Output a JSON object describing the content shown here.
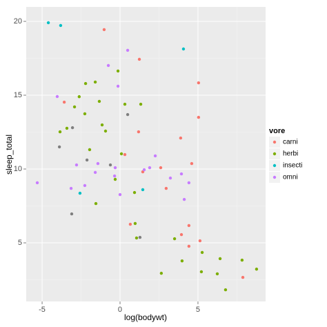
{
  "chart_data": {
    "type": "scatter",
    "x_label": "log(bodywt)",
    "y_label": "sleep_total",
    "legend_title": "vore",
    "xlim": [
      -6.02,
      9.34
    ],
    "ylim": [
      1.03,
      20.98
    ],
    "xticks": [
      -5,
      0,
      5
    ],
    "yticks": [
      5,
      10,
      15,
      20
    ],
    "grid": true,
    "legend": "right",
    "series": [
      {
        "name": "carni",
        "color": "#F8766D",
        "x": [
          -1.02,
          1.24,
          -3.58,
          5.04,
          5.04,
          1.19,
          3.89,
          0.31,
          2.61,
          4.6,
          1.46,
          2.96,
          0.66,
          3.94,
          4.42,
          5.13,
          4.42,
          7.88
        ],
        "values": [
          19.44,
          17.43,
          14.53,
          15.84,
          13.5,
          12.52,
          12.1,
          10.98,
          10.09,
          10.37,
          9.81,
          8.69,
          6.26,
          5.56,
          6.17,
          5.14,
          4.77,
          2.66
        ]
      },
      {
        "name": "herbi",
        "color": "#7CAE00",
        "x": [
          -0.13,
          -1.59,
          -2.21,
          -2.92,
          -1.33,
          0.31,
          1.33,
          -3.41,
          -1.15,
          -0.93,
          -3.85,
          -2.26,
          -2.62,
          -1.95,
          0.09,
          -0.31,
          0.93,
          -1.55,
          0.97,
          1.06,
          3.5,
          3.98,
          5.27,
          6.42,
          2.65,
          5.22,
          6.24,
          6.77,
          7.83,
          8.76
        ],
        "values": [
          16.64,
          15.89,
          15.79,
          14.21,
          14.58,
          14.39,
          14.39,
          12.76,
          12.99,
          12.57,
          12.52,
          13.74,
          14.9,
          11.31,
          11.03,
          9.3,
          8.41,
          7.66,
          6.31,
          5.33,
          5.28,
          3.78,
          4.35,
          3.93,
          2.94,
          3.04,
          2.9,
          1.82,
          3.83,
          3.22
        ]
      },
      {
        "name": "insecti",
        "color": "#00BFC4",
        "x": [
          -4.6,
          -3.81,
          4.07,
          -2.57,
          1.46
        ],
        "values": [
          19.91,
          19.72,
          18.13,
          8.36,
          8.6
        ]
      },
      {
        "name": "omni",
        "color": "#C77CFF",
        "x": [
          0.49,
          -0.75,
          -0.13,
          -4.03,
          -2.79,
          -1.42,
          -0.31,
          -0.35,
          1.55,
          1.9,
          2.26,
          3.23,
          3.94,
          4.42,
          4.12,
          -5.31,
          -3.14,
          -2.26,
          -1.59,
          0.0
        ],
        "values": [
          18.04,
          17.01,
          15.61,
          14.91,
          10.28,
          10.37,
          10.09,
          9.53,
          9.95,
          10.09,
          10.89,
          9.39,
          9.67,
          9.07,
          7.94,
          9.07,
          8.69,
          8.88,
          9.77,
          8.27
        ]
      },
      {
        "color": "#7F7F7F",
        "x": [
          -3.89,
          -3.05,
          -2.12,
          -0.62,
          0.49,
          -3.1,
          1.28
        ],
        "values": [
          11.5,
          12.8,
          10.61,
          10.28,
          13.69,
          6.96,
          5.37
        ]
      }
    ]
  }
}
